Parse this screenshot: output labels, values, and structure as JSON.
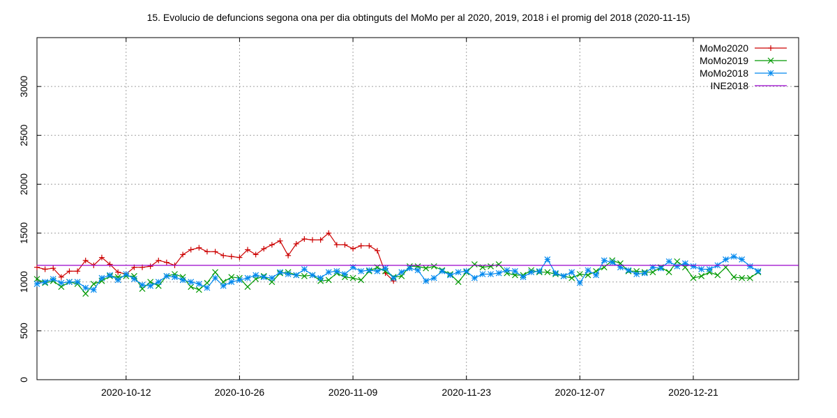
{
  "chart_data": {
    "type": "line",
    "title": "15. Evolucio de defuncions segona ona per dia obtinguts del MoMo per al 2020, 2019, 2018 i el promig del 2018 (2020-11-15)",
    "xlabel": "",
    "ylabel": "",
    "x_start_date": "2020-10-01",
    "xlim": [
      0,
      94
    ],
    "ylim": [
      0,
      3500
    ],
    "y_ticks": [
      0,
      500,
      1000,
      1500,
      2000,
      2500,
      3000
    ],
    "x_ticks": [
      {
        "day": 11,
        "label": "2020-10-12"
      },
      {
        "day": 25,
        "label": "2020-10-26"
      },
      {
        "day": 39,
        "label": "2020-11-09"
      },
      {
        "day": 53,
        "label": "2020-11-23"
      },
      {
        "day": 67,
        "label": "2020-12-07"
      },
      {
        "day": 81,
        "label": "2020-12-21"
      }
    ],
    "grid": true,
    "legend_position": "top-right",
    "series": [
      {
        "name": "MoMo2020",
        "color": "#cc0000",
        "marker": "plus",
        "values": [
          1150,
          1130,
          1140,
          1050,
          1110,
          1110,
          1220,
          1170,
          1250,
          1180,
          1100,
          1080,
          1150,
          1150,
          1160,
          1220,
          1200,
          1170,
          1280,
          1330,
          1350,
          1310,
          1310,
          1270,
          1260,
          1250,
          1330,
          1280,
          1340,
          1380,
          1420,
          1270,
          1390,
          1440,
          1430,
          1430,
          1500,
          1380,
          1380,
          1340,
          1370,
          1370,
          1320,
          1090,
          1010
        ]
      },
      {
        "name": "MoMo2019",
        "color": "#009900",
        "marker": "cross",
        "values": [
          1030,
          990,
          1010,
          950,
          1000,
          980,
          880,
          980,
          1010,
          1060,
          1050,
          1060,
          1060,
          930,
          1000,
          960,
          1060,
          1080,
          1050,
          950,
          920,
          990,
          1100,
          1000,
          1050,
          1040,
          950,
          1030,
          1060,
          1000,
          1090,
          1100,
          1070,
          1060,
          1070,
          1010,
          1020,
          1090,
          1050,
          1040,
          1020,
          1110,
          1150,
          1110,
          1050,
          1060,
          1160,
          1160,
          1140,
          1160,
          1120,
          1080,
          1000,
          1100,
          1180,
          1150,
          1160,
          1180,
          1090,
          1070,
          1070,
          1120,
          1100,
          1100,
          1080,
          1060,
          1040,
          1080,
          1070,
          1110,
          1150,
          1220,
          1190,
          1110,
          1110,
          1100,
          1100,
          1150,
          1100,
          1210,
          1150,
          1040,
          1060,
          1100,
          1070,
          1150,
          1050,
          1040,
          1040,
          1100
        ]
      },
      {
        "name": "MoMo2018",
        "color": "#0088ee",
        "marker": "star",
        "values": [
          980,
          1000,
          1030,
          990,
          1000,
          1000,
          940,
          920,
          1040,
          1070,
          1020,
          1080,
          1030,
          970,
          960,
          1000,
          1060,
          1050,
          1020,
          1000,
          980,
          940,
          1040,
          960,
          1000,
          1020,
          1040,
          1070,
          1050,
          1040,
          1100,
          1080,
          1070,
          1130,
          1070,
          1040,
          1100,
          1110,
          1080,
          1150,
          1110,
          1120,
          1110,
          1140,
          1040,
          1100,
          1140,
          1120,
          1010,
          1040,
          1110,
          1070,
          1100,
          1110,
          1040,
          1080,
          1080,
          1090,
          1120,
          1110,
          1050,
          1100,
          1110,
          1230,
          1090,
          1060,
          1100,
          990,
          1120,
          1070,
          1220,
          1200,
          1150,
          1120,
          1080,
          1090,
          1150,
          1140,
          1210,
          1160,
          1190,
          1160,
          1130,
          1130,
          1170,
          1230,
          1260,
          1230,
          1160,
          1110
        ]
      },
      {
        "name": "INE2018",
        "color": "#9900cc",
        "marker": "none",
        "constant": 1170
      }
    ]
  }
}
